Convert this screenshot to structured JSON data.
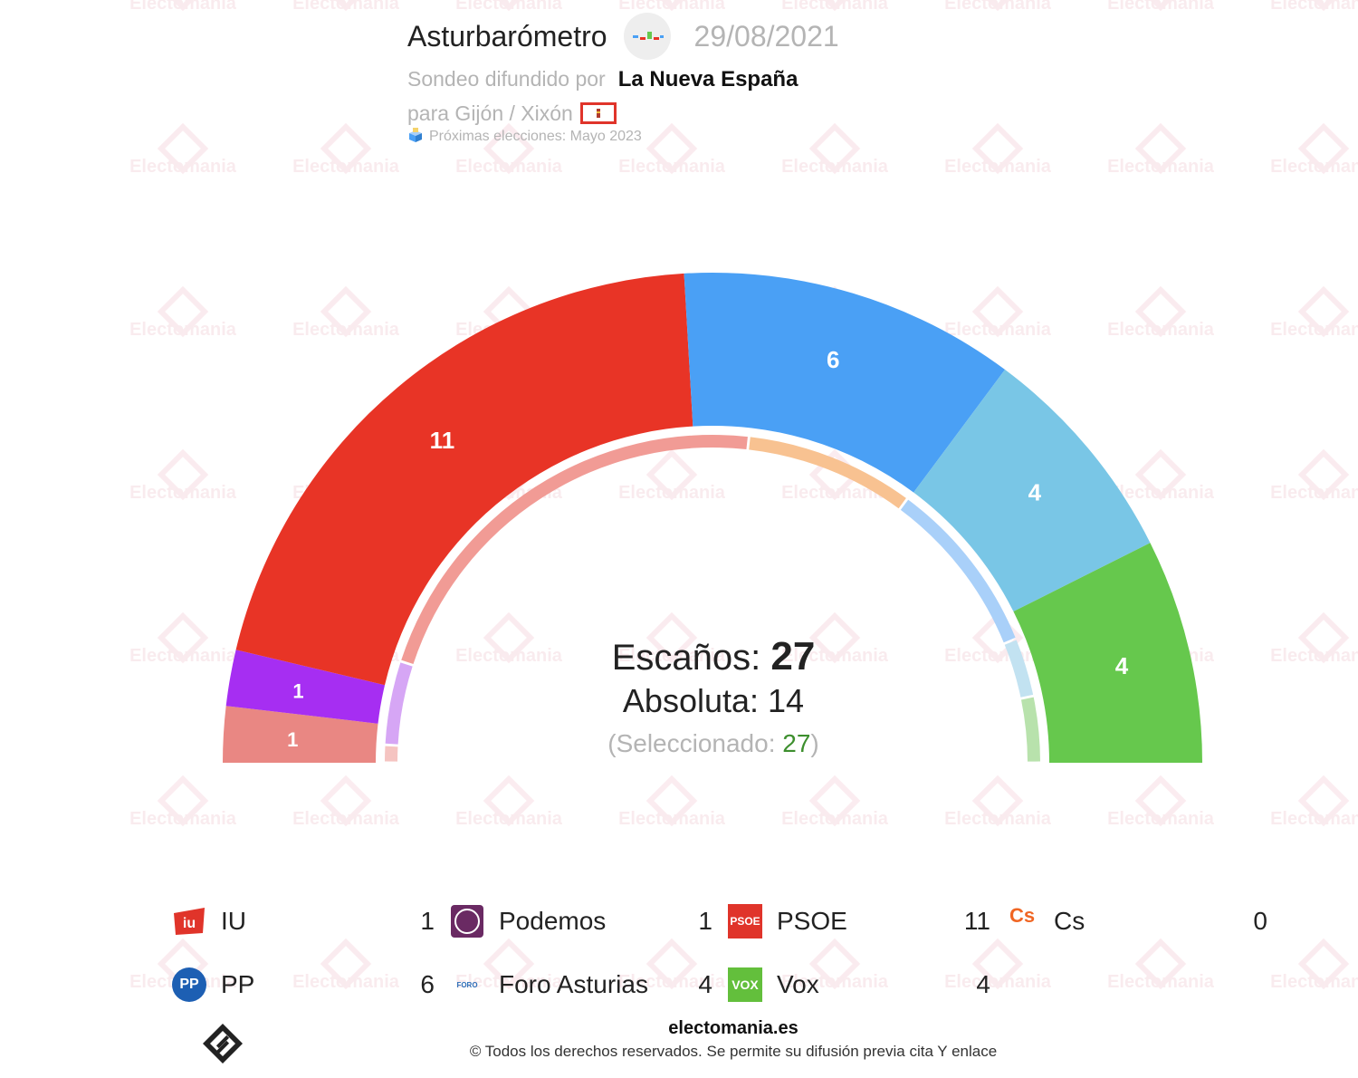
{
  "header": {
    "pollster": "Asturbarómetro",
    "date": "29/08/2021",
    "spread_label": "Sondeo difundido por",
    "media": "La Nueva España",
    "place": "para Gijón / Xixón",
    "next_elections": "Próximas elecciones: Mayo 2023"
  },
  "watermark_text": "Electomania",
  "center": {
    "seats_label": "Escaños:",
    "seats_value": "27",
    "absolute_label": "Absoluta:",
    "absolute_value": "14",
    "selected_open": "(Seleccionado: ",
    "selected_value": "27",
    "selected_close": ")"
  },
  "chart_data": {
    "type": "pie",
    "subtype": "parliament-semicircle",
    "total_seats": 27,
    "majority": 14,
    "segments": [
      {
        "party": "IU",
        "seats": 1,
        "color": "#e98783"
      },
      {
        "party": "Podemos",
        "seats": 1,
        "color": "#a62ef2"
      },
      {
        "party": "PSOE",
        "seats": 11,
        "color": "#e83426"
      },
      {
        "party": "PP",
        "seats": 6,
        "color": "#4aa0f5"
      },
      {
        "party": "Foro Asturias",
        "seats": 4,
        "color": "#79c6e6"
      },
      {
        "party": "Vox",
        "seats": 4,
        "color": "#66c84d"
      }
    ],
    "inner_ring": [
      {
        "party": "IU",
        "color": "#f5c4c1"
      },
      {
        "party": "Podemos",
        "color": "#d6a6f5"
      },
      {
        "party": "PSOE",
        "color": "#f19b95"
      },
      {
        "party": "Cs",
        "color": "#f8c291"
      },
      {
        "party": "PP",
        "color": "#a9d0f9"
      },
      {
        "party": "Foro Asturias",
        "color": "#c2e2f1"
      },
      {
        "party": "Vox",
        "color": "#b8e2ac"
      }
    ]
  },
  "legend": [
    {
      "name": "IU",
      "seats": "1",
      "icon": "iu-logo-icon",
      "color": "#e0342a"
    },
    {
      "name": "Podemos",
      "seats": "1",
      "icon": "podemos-logo-icon",
      "color": "#6a2a63"
    },
    {
      "name": "PSOE",
      "seats": "11",
      "icon": "psoe-logo-icon",
      "color": "#e0342a",
      "icon_text": "PSOE"
    },
    {
      "name": "Cs",
      "seats": "0",
      "icon": "cs-logo-icon",
      "color": "#f06624",
      "icon_text": "Cs"
    },
    {
      "name": "PP",
      "seats": "6",
      "icon": "pp-logo-icon",
      "color": "#1d5fb3",
      "icon_text": "PP"
    },
    {
      "name": "Foro Asturias",
      "seats": "4",
      "icon": "foro-logo-icon",
      "color": "#2d6fb8",
      "icon_text": "FORO"
    },
    {
      "name": "Vox",
      "seats": "4",
      "icon": "vox-logo-icon",
      "color": "#63bf3c",
      "icon_text": "VOX"
    }
  ],
  "footer": {
    "site": "electomania.es",
    "copyright": "© Todos los derechos reservados. Se permite su difusión previa cita Y enlace"
  }
}
